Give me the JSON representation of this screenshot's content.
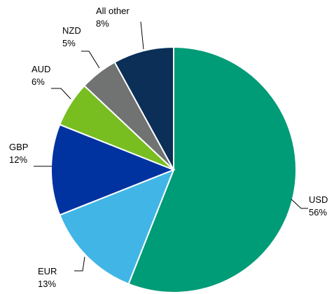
{
  "chart_data": {
    "type": "pie",
    "categories": [
      "USD",
      "EUR",
      "GBP",
      "AUD",
      "NZD",
      "All other"
    ],
    "values": [
      56,
      13,
      12,
      6,
      5,
      8
    ],
    "value_labels": [
      "56%",
      "13%",
      "12%",
      "6%",
      "5%",
      "8%"
    ],
    "colors": [
      "#009b77",
      "#41b6e6",
      "#0033a0",
      "#78be20",
      "#707372",
      "#0b2f57"
    ]
  }
}
